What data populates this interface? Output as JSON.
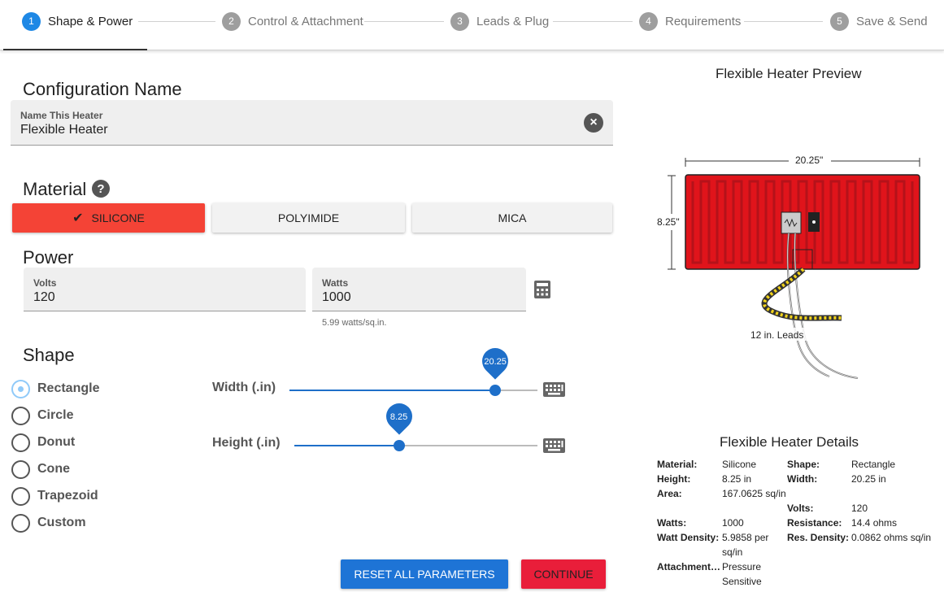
{
  "stepper": {
    "steps": [
      {
        "num": "1",
        "label": "Shape & Power"
      },
      {
        "num": "2",
        "label": "Control & Attachment"
      },
      {
        "num": "3",
        "label": "Leads & Plug"
      },
      {
        "num": "4",
        "label": "Requirements"
      },
      {
        "num": "5",
        "label": "Save & Send"
      }
    ],
    "active_index": 0
  },
  "config": {
    "heading": "Configuration Name",
    "field_label": "Name This Heater",
    "field_value": "Flexible Heater"
  },
  "material": {
    "heading": "Material",
    "options": [
      "SILICONE",
      "POLYIMIDE",
      "MICA"
    ],
    "selected": "SILICONE"
  },
  "power": {
    "heading": "Power",
    "volts_label": "Volts",
    "volts_value": "120",
    "watts_label": "Watts",
    "watts_value": "1000",
    "density_hint": "5.99 watts/sq.in."
  },
  "shape": {
    "heading": "Shape",
    "options": [
      "Rectangle",
      "Circle",
      "Donut",
      "Cone",
      "Trapezoid",
      "Custom"
    ],
    "selected": "Rectangle",
    "width": {
      "label": "Width (.in)",
      "value": "20.25",
      "fraction": 0.83
    },
    "height": {
      "label": "Height (.in)",
      "value": "8.25",
      "fraction": 0.43
    }
  },
  "actions": {
    "reset_label": "RESET ALL PARAMETERS",
    "continue_label": "CONTINUE"
  },
  "preview": {
    "title": "Flexible Heater Preview",
    "width_dim": "20.25\"",
    "height_dim": "8.25\"",
    "leads_label": "12 in. Leads"
  },
  "details": {
    "title": "Flexible Heater Details",
    "material_label": "Material:",
    "material_value": "Silicone",
    "shape_label": "Shape:",
    "shape_value": "Rectangle",
    "height_label": "Height:",
    "height_value": "8.25 in",
    "width_label": "Width:",
    "width_value": "20.25 in",
    "area_label": "Area:",
    "area_value": "167.0625 sq/in",
    "volts_label": "Volts:",
    "volts_value": "120",
    "watts_label": "Watts:",
    "watts_value": "1000",
    "resistance_label": "Resistance:",
    "resistance_value": "14.4 ohms",
    "watt_density_label": "Watt Density:",
    "watt_density_value": "5.9858 per sq/in",
    "res_density_label": "Res. Density:",
    "res_density_value": "0.0862 ohms sq/in",
    "attachment_label": "Attachment…",
    "attachment_value": "Pressure Sensitive"
  },
  "colors": {
    "accent_blue": "#1e88e5",
    "silicone_red": "#f44336",
    "heater_red": "#e0141b",
    "continue_red": "#e91e3a"
  }
}
